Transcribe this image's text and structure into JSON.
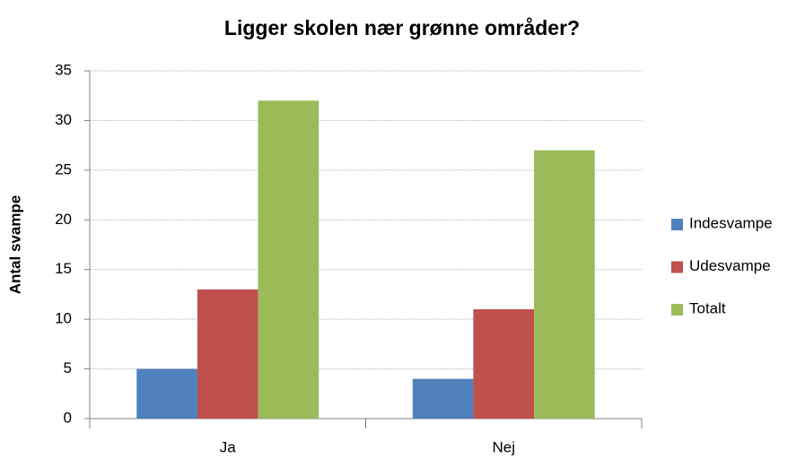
{
  "chart_data": {
    "type": "bar",
    "title": "Ligger skolen nær grønne områder?",
    "y_label": "Antal svampe",
    "categories": [
      "Ja",
      "Nej"
    ],
    "series": [
      {
        "name": "Indesvampe",
        "color": "#4f81bd",
        "values": [
          5,
          4
        ]
      },
      {
        "name": "Udesvampe",
        "color": "#c0504d",
        "values": [
          13,
          11
        ]
      },
      {
        "name": "Totalt",
        "color": "#9bbb59",
        "values": [
          32,
          27
        ]
      }
    ],
    "ylim": [
      0,
      35
    ],
    "yticks": [
      0,
      5,
      10,
      15,
      20,
      25,
      30,
      35
    ],
    "grid": true,
    "legend": "right"
  }
}
